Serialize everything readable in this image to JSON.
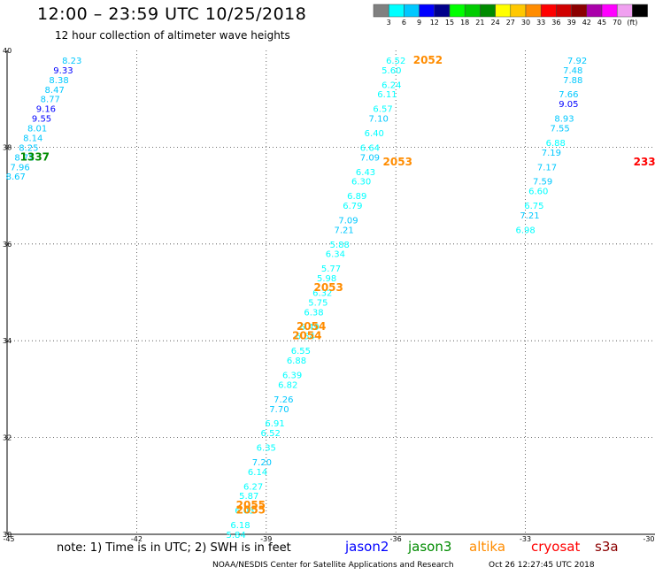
{
  "header": {
    "title": "12:00 – 23:59 UTC 10/25/2018",
    "subtitle": "12 hour collection of altimeter wave heights"
  },
  "color_scale": {
    "labels": [
      "3",
      "6",
      "9",
      "12",
      "15",
      "18",
      "21",
      "24",
      "27",
      "30",
      "33",
      "36",
      "39",
      "42",
      "45",
      "70",
      "(ft)"
    ],
    "colors": [
      "#808080",
      "#00ffff",
      "#00c8ff",
      "#0000ff",
      "#00008b",
      "#00ff00",
      "#00cc00",
      "#008b00",
      "#ffff00",
      "#ffc800",
      "#ff8c00",
      "#ff0000",
      "#d00000",
      "#8b0000",
      "#aa00aa",
      "#ff00ff",
      "#f0a0f0",
      "#000000"
    ]
  },
  "axes": {
    "lon_ticks": [
      "-45",
      "-42",
      "-39",
      "-36",
      "-33",
      "-30"
    ],
    "lat_ticks": [
      "40",
      "38",
      "36",
      "34",
      "32",
      "30"
    ]
  },
  "chart_data": {
    "type": "scatter",
    "x_range": [
      -45,
      -30
    ],
    "y_range": [
      30,
      40
    ],
    "x_ticks": [
      -45,
      -42,
      -39,
      -36,
      -33
    ],
    "y_ticks": [
      38,
      36,
      34,
      32
    ],
    "grid": true,
    "units": "ft",
    "tracks": [
      {
        "satellite": "jason3",
        "pass_labels": [
          {
            "text": "1337",
            "lon": -44.7,
            "lat": 37.8
          }
        ],
        "points": [
          {
            "lon": -43.5,
            "lat": 39.8,
            "value": "8.23",
            "color": "#00c8ff"
          },
          {
            "lon": -43.7,
            "lat": 39.6,
            "value": "9.33",
            "color": "#0000ff"
          },
          {
            "lon": -43.8,
            "lat": 39.4,
            "value": "8.38",
            "color": "#00c8ff"
          },
          {
            "lon": -43.9,
            "lat": 39.2,
            "value": "8.47",
            "color": "#00c8ff"
          },
          {
            "lon": -44.0,
            "lat": 39.0,
            "value": "8.77",
            "color": "#00c8ff"
          },
          {
            "lon": -44.1,
            "lat": 38.8,
            "value": "9.16",
            "color": "#0000ff"
          },
          {
            "lon": -44.2,
            "lat": 38.6,
            "value": "9.55",
            "color": "#0000ff"
          },
          {
            "lon": -44.3,
            "lat": 38.4,
            "value": "8.01",
            "color": "#00c8ff"
          },
          {
            "lon": -44.4,
            "lat": 38.2,
            "value": "8.14",
            "color": "#00c8ff"
          },
          {
            "lon": -44.5,
            "lat": 38.0,
            "value": "8.25",
            "color": "#00c8ff"
          },
          {
            "lon": -44.6,
            "lat": 37.8,
            "value": "8.72",
            "color": "#00c8ff"
          },
          {
            "lon": -44.7,
            "lat": 37.6,
            "value": "7.96",
            "color": "#00c8ff"
          },
          {
            "lon": -44.8,
            "lat": 37.4,
            "value": "8.67",
            "color": "#00c8ff"
          }
        ]
      },
      {
        "satellite": "altika",
        "pass_labels": [
          {
            "text": "2052",
            "lon": -35.6,
            "lat": 39.8
          },
          {
            "text": "2053",
            "lon": -36.3,
            "lat": 37.7
          },
          {
            "text": "2053",
            "lon": -37.9,
            "lat": 35.1
          },
          {
            "text": "2054",
            "lon": -38.3,
            "lat": 34.3
          },
          {
            "text": "2054",
            "lon": -38.4,
            "lat": 34.1
          },
          {
            "text": "2055",
            "lon": -39.7,
            "lat": 30.6
          },
          {
            "text": "2055",
            "lon": -39.7,
            "lat": 30.5
          }
        ],
        "points": [
          {
            "lon": -36.0,
            "lat": 39.8,
            "value": "6.52",
            "color": "#00ffff"
          },
          {
            "lon": -36.1,
            "lat": 39.6,
            "value": "5.60",
            "color": "#00ffff"
          },
          {
            "lon": -36.1,
            "lat": 39.3,
            "value": "6.24",
            "color": "#00ffff"
          },
          {
            "lon": -36.2,
            "lat": 39.1,
            "value": "6.11",
            "color": "#00ffff"
          },
          {
            "lon": -36.3,
            "lat": 38.8,
            "value": "6.57",
            "color": "#00ffff"
          },
          {
            "lon": -36.4,
            "lat": 38.6,
            "value": "7.10",
            "color": "#00c8ff"
          },
          {
            "lon": -36.5,
            "lat": 38.3,
            "value": "6.40",
            "color": "#00ffff"
          },
          {
            "lon": -36.6,
            "lat": 38.0,
            "value": "6.64",
            "color": "#00ffff"
          },
          {
            "lon": -36.6,
            "lat": 37.8,
            "value": "7.09",
            "color": "#00c8ff"
          },
          {
            "lon": -36.7,
            "lat": 37.5,
            "value": "6.43",
            "color": "#00ffff"
          },
          {
            "lon": -36.8,
            "lat": 37.3,
            "value": "6.30",
            "color": "#00ffff"
          },
          {
            "lon": -36.9,
            "lat": 37.0,
            "value": "6.89",
            "color": "#00ffff"
          },
          {
            "lon": -37.0,
            "lat": 36.8,
            "value": "6.79",
            "color": "#00ffff"
          },
          {
            "lon": -37.1,
            "lat": 36.5,
            "value": "7.09",
            "color": "#00c8ff"
          },
          {
            "lon": -37.2,
            "lat": 36.3,
            "value": "7.21",
            "color": "#00c8ff"
          },
          {
            "lon": -37.3,
            "lat": 36.0,
            "value": "5.88",
            "color": "#00ffff"
          },
          {
            "lon": -37.4,
            "lat": 35.8,
            "value": "6.34",
            "color": "#00ffff"
          },
          {
            "lon": -37.5,
            "lat": 35.5,
            "value": "5.77",
            "color": "#00ffff"
          },
          {
            "lon": -37.6,
            "lat": 35.3,
            "value": "5.98",
            "color": "#00ffff"
          },
          {
            "lon": -37.7,
            "lat": 35.0,
            "value": "6.32",
            "color": "#00ffff"
          },
          {
            "lon": -37.8,
            "lat": 34.8,
            "value": "5.75",
            "color": "#00ffff"
          },
          {
            "lon": -37.9,
            "lat": 34.6,
            "value": "6.38",
            "color": "#00ffff"
          },
          {
            "lon": -38.0,
            "lat": 34.3,
            "value": "6.49",
            "color": "#00ffff"
          },
          {
            "lon": -38.1,
            "lat": 34.1,
            "value": "6.54",
            "color": "#00ffff"
          },
          {
            "lon": -38.2,
            "lat": 33.8,
            "value": "6.55",
            "color": "#00ffff"
          },
          {
            "lon": -38.3,
            "lat": 33.6,
            "value": "6.88",
            "color": "#00ffff"
          },
          {
            "lon": -38.4,
            "lat": 33.3,
            "value": "6.39",
            "color": "#00ffff"
          },
          {
            "lon": -38.5,
            "lat": 33.1,
            "value": "6.82",
            "color": "#00ffff"
          },
          {
            "lon": -38.6,
            "lat": 32.8,
            "value": "7.26",
            "color": "#00c8ff"
          },
          {
            "lon": -38.7,
            "lat": 32.6,
            "value": "7.70",
            "color": "#00c8ff"
          },
          {
            "lon": -38.8,
            "lat": 32.3,
            "value": "6.91",
            "color": "#00ffff"
          },
          {
            "lon": -38.9,
            "lat": 32.1,
            "value": "6.52",
            "color": "#00ffff"
          },
          {
            "lon": -39.0,
            "lat": 31.8,
            "value": "6.35",
            "color": "#00ffff"
          },
          {
            "lon": -39.1,
            "lat": 31.5,
            "value": "7.20",
            "color": "#00c8ff"
          },
          {
            "lon": -39.2,
            "lat": 31.3,
            "value": "6.14",
            "color": "#00ffff"
          },
          {
            "lon": -39.3,
            "lat": 31.0,
            "value": "6.27",
            "color": "#00ffff"
          },
          {
            "lon": -39.4,
            "lat": 30.8,
            "value": "5.87",
            "color": "#00ffff"
          },
          {
            "lon": -39.5,
            "lat": 30.5,
            "value": "6.03",
            "color": "#00ffff"
          },
          {
            "lon": -39.6,
            "lat": 30.2,
            "value": "6.18",
            "color": "#00ffff"
          },
          {
            "lon": -39.7,
            "lat": 30.0,
            "value": "5.84",
            "color": "#00ffff"
          }
        ]
      },
      {
        "satellite": "cryosat",
        "pass_labels": [
          {
            "text": "233",
            "lon": -30.5,
            "lat": 37.7
          }
        ],
        "points": [
          {
            "lon": -31.8,
            "lat": 39.8,
            "value": "7.92",
            "color": "#00c8ff"
          },
          {
            "lon": -31.9,
            "lat": 39.6,
            "value": "7.48",
            "color": "#00c8ff"
          },
          {
            "lon": -31.9,
            "lat": 39.4,
            "value": "7.88",
            "color": "#00c8ff"
          },
          {
            "lon": -32.0,
            "lat": 39.1,
            "value": "7.66",
            "color": "#00c8ff"
          },
          {
            "lon": -32.0,
            "lat": 38.9,
            "value": "9.05",
            "color": "#0000ff"
          },
          {
            "lon": -32.1,
            "lat": 38.6,
            "value": "8.93",
            "color": "#00c8ff"
          },
          {
            "lon": -32.2,
            "lat": 38.4,
            "value": "7.55",
            "color": "#00c8ff"
          },
          {
            "lon": -32.3,
            "lat": 38.1,
            "value": "6.88",
            "color": "#00ffff"
          },
          {
            "lon": -32.4,
            "lat": 37.9,
            "value": "7.19",
            "color": "#00c8ff"
          },
          {
            "lon": -32.5,
            "lat": 37.6,
            "value": "7.17",
            "color": "#00c8ff"
          },
          {
            "lon": -32.6,
            "lat": 37.3,
            "value": "7.59",
            "color": "#00c8ff"
          },
          {
            "lon": -32.7,
            "lat": 37.1,
            "value": "6.60",
            "color": "#00ffff"
          },
          {
            "lon": -32.8,
            "lat": 36.8,
            "value": "6.75",
            "color": "#00ffff"
          },
          {
            "lon": -32.9,
            "lat": 36.6,
            "value": "7.21",
            "color": "#00c8ff"
          },
          {
            "lon": -33.0,
            "lat": 36.3,
            "value": "6.98",
            "color": "#00ffff"
          }
        ]
      }
    ]
  },
  "footer": {
    "note": "note: 1) Time is in UTC; 2) SWH is in feet",
    "satellites": [
      {
        "name": "jason2",
        "color": "#0000ff"
      },
      {
        "name": "jason3",
        "color": "#008b00"
      },
      {
        "name": "altika",
        "color": "#ff8c00"
      },
      {
        "name": "cryosat",
        "color": "#ff0000"
      },
      {
        "name": "s3a",
        "color": "#8b0000"
      }
    ],
    "credit": "NOAA/NESDIS Center for Satellite Applications and Research",
    "timestamp": "Oct 26 12:27:45 UTC 2018"
  }
}
